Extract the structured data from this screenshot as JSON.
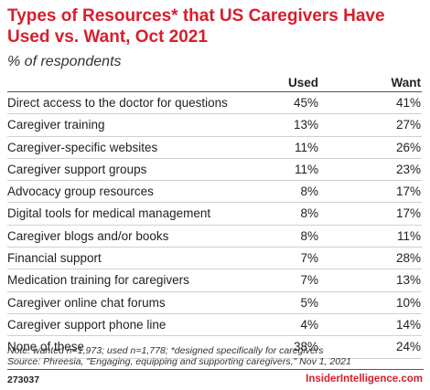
{
  "chart_data": {
    "type": "table",
    "title": "Types of Resources* that US Caregivers Have Used vs. Want, Oct 2021",
    "subtitle": "% of respondents",
    "columns": [
      "Used",
      "Want"
    ],
    "rows": [
      {
        "label": "Direct access to the doctor for questions",
        "used": "45%",
        "want": "41%"
      },
      {
        "label": "Caregiver training",
        "used": "13%",
        "want": "27%"
      },
      {
        "label": "Caregiver-specific websites",
        "used": "11%",
        "want": "26%"
      },
      {
        "label": "Caregiver support groups",
        "used": "11%",
        "want": "23%"
      },
      {
        "label": "Advocacy group resources",
        "used": "8%",
        "want": "17%"
      },
      {
        "label": "Digital tools for medical management",
        "used": "8%",
        "want": "17%"
      },
      {
        "label": "Caregiver blogs and/or books",
        "used": "8%",
        "want": "11%"
      },
      {
        "label": "Financial support",
        "used": "7%",
        "want": "28%"
      },
      {
        "label": "Medication training for caregivers",
        "used": "7%",
        "want": "13%"
      },
      {
        "label": "Caregiver online chat forums",
        "used": "5%",
        "want": "10%"
      },
      {
        "label": "Caregiver support phone line",
        "used": "4%",
        "want": "14%"
      },
      {
        "label": "None of these",
        "used": "38%",
        "want": "24%"
      }
    ]
  },
  "footer": {
    "note": "Note: wanted n=1,973; used n=1,778; *designed specifically for caregivers",
    "source": "Source: Phreesia, \"Engaging, equipping and supporting caregivers,\" Nov 1, 2021",
    "code": "273037",
    "brand": "InsiderIntelligence.com"
  },
  "colors": {
    "title": "#d81e2c",
    "brand": "#d81e2c"
  }
}
